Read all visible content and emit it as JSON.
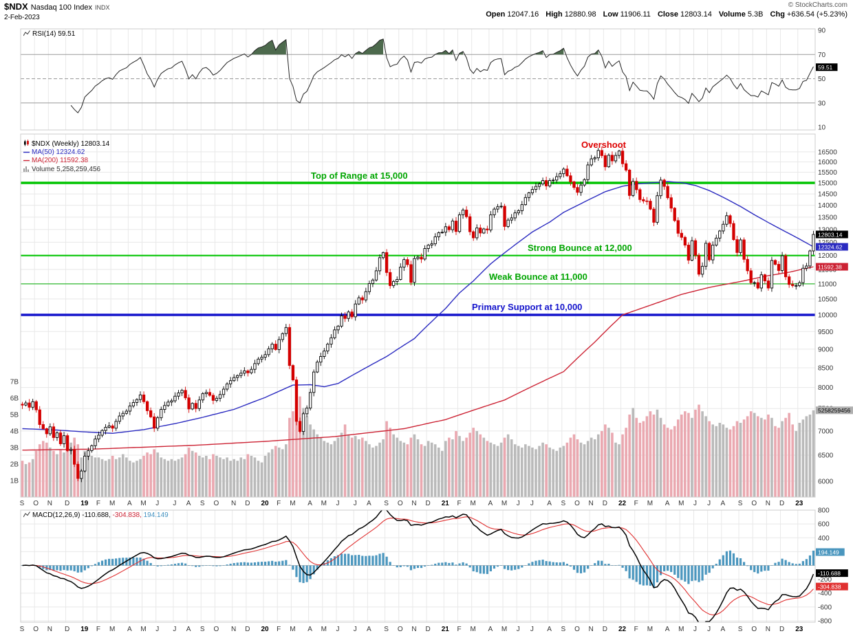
{
  "header": {
    "symbol": "$NDX",
    "name": "Nasdaq 100 Index",
    "exchange": "INDX",
    "date": "2-Feb-2023",
    "copyright": "© StockCharts.com",
    "open_l": "Open",
    "open_v": "12047.16",
    "high_l": "High",
    "high_v": "12880.98",
    "low_l": "Low",
    "low_v": "11906.11",
    "close_l": "Close",
    "close_v": "12803.14",
    "vol_l": "Volume",
    "vol_v": "5.3B",
    "chg_l": "Chg",
    "chg_v": "+636.54 (+5.23%)"
  },
  "legends": {
    "rsi": "RSI(14) 59.51",
    "main_title": "$NDX (Weekly) 12803.14",
    "ma50": "MA(50) 12324.62",
    "ma200": "MA(200) 11592.38",
    "volume": "Volume 5,258,259,456",
    "macd_label": "MACD(12,26,9)",
    "macd_value": "-110.688,",
    "macd_signal": "-304.838,",
    "macd_hist": "194.149"
  },
  "chart_data": {
    "type": "candlestick",
    "symbol": "$NDX",
    "period": "Weekly",
    "log_scale": true,
    "x_month_ticks": [
      [
        "S",
        0
      ],
      [
        "O",
        4
      ],
      [
        "N",
        8
      ],
      [
        "D",
        13
      ],
      [
        "19",
        18
      ],
      [
        "F",
        22
      ],
      [
        "M",
        26
      ],
      [
        "A",
        31
      ],
      [
        "M",
        35
      ],
      [
        "J",
        39
      ],
      [
        "J",
        44
      ],
      [
        "A",
        48
      ],
      [
        "S",
        52
      ],
      [
        "O",
        56
      ],
      [
        "N",
        61
      ],
      [
        "D",
        65
      ],
      [
        "20",
        70
      ],
      [
        "F",
        74
      ],
      [
        "M",
        78
      ],
      [
        "A",
        83
      ],
      [
        "M",
        87
      ],
      [
        "J",
        91
      ],
      [
        "J",
        96
      ],
      [
        "A",
        100
      ],
      [
        "S",
        105
      ],
      [
        "O",
        109
      ],
      [
        "N",
        113
      ],
      [
        "D",
        117
      ],
      [
        "21",
        122
      ],
      [
        "F",
        126
      ],
      [
        "M",
        130
      ],
      [
        "A",
        135
      ],
      [
        "M",
        139
      ],
      [
        "J",
        143
      ],
      [
        "J",
        147
      ],
      [
        "A",
        152
      ],
      [
        "S",
        156
      ],
      [
        "O",
        160
      ],
      [
        "N",
        164
      ],
      [
        "D",
        168
      ],
      [
        "22",
        173
      ],
      [
        "F",
        177
      ],
      [
        "M",
        181
      ],
      [
        "A",
        186
      ],
      [
        "M",
        190
      ],
      [
        "J",
        194
      ],
      [
        "J",
        198
      ],
      [
        "A",
        202
      ],
      [
        "S",
        207
      ],
      [
        "O",
        211
      ],
      [
        "N",
        215
      ],
      [
        "D",
        219
      ],
      [
        "23",
        224
      ]
    ],
    "closes": [
      7580,
      7630,
      7530,
      7660,
      7470,
      7140,
      7050,
      6940,
      7090,
      6860,
      6960,
      6730,
      6900,
      6590,
      6610,
      6320,
      6050,
      6190,
      6480,
      6590,
      6690,
      6830,
      6910,
      7010,
      7080,
      7110,
      7060,
      7210,
      7330,
      7390,
      7440,
      7560,
      7640,
      7710,
      7820,
      7660,
      7450,
      7310,
      7060,
      7290,
      7480,
      7570,
      7650,
      7680,
      7790,
      7870,
      7930,
      7750,
      7490,
      7620,
      7500,
      7700,
      7850,
      7880,
      7810,
      7690,
      7740,
      7830,
      7960,
      8090,
      8170,
      8250,
      8300,
      8360,
      8420,
      8370,
      8460,
      8610,
      8730,
      8780,
      8850,
      9010,
      9140,
      8990,
      9270,
      9440,
      9620,
      8560,
      8190,
      7210,
      6990,
      7380,
      7510,
      7880,
      8390,
      8650,
      8800,
      8950,
      9140,
      9320,
      9550,
      9660,
      9970,
      9890,
      10090,
      9940,
      10340,
      10540,
      10470,
      10740,
      11010,
      11130,
      11450,
      11920,
      12110,
      11390,
      10940,
      11080,
      11150,
      11580,
      11850,
      11670,
      11050,
      11890,
      11940,
      11870,
      12260,
      12390,
      12440,
      12710,
      12870,
      12890,
      13110,
      12990,
      13340,
      12920,
      13600,
      13800,
      13520,
      12910,
      12670,
      13060,
      12860,
      13020,
      12980,
      13600,
      13840,
      13940,
      13960,
      13120,
      13380,
      13470,
      13680,
      13770,
      14030,
      14340,
      14550,
      14700,
      14840,
      14950,
      15110,
      14860,
      15110,
      15130,
      15290,
      15430,
      15650,
      15330,
      15050,
      14790,
      14570,
      14900,
      15150,
      15850,
      16150,
      16200,
      16570,
      16310,
      15760,
      16330,
      16050,
      16320,
      16540,
      15910,
      15600,
      14430,
      15070,
      14690,
      14250,
      14190,
      14180,
      13840,
      13290,
      14420,
      15130,
      14840,
      14330,
      13880,
      13360,
      12850,
      12690,
      12390,
      11830,
      12560,
      12010,
      11330,
      11610,
      12460,
      11840,
      12390,
      12660,
      12940,
      13210,
      13560,
      13240,
      12600,
      12110,
      12590,
      11860,
      11450,
      11040,
      11040,
      10860,
      11310,
      11100,
      10860,
      11820,
      11680,
      11460,
      11990,
      11240,
      10980,
      10940,
      10940,
      11040,
      11540,
      11620,
      12170,
      12803.14
    ],
    "volume_billions": [
      2.2,
      2.0,
      2.1,
      2.3,
      2.8,
      3.2,
      3.4,
      3.3,
      3.0,
      2.8,
      2.6,
      2.9,
      2.7,
      3.1,
      3.3,
      3.6,
      3.2,
      2.4,
      2.8,
      2.6,
      2.5,
      2.4,
      2.4,
      2.3,
      2.2,
      2.3,
      2.5,
      2.3,
      2.4,
      2.6,
      2.4,
      2.2,
      2.1,
      2.2,
      2.3,
      2.5,
      2.7,
      2.6,
      2.9,
      2.7,
      2.4,
      2.3,
      2.2,
      2.3,
      2.2,
      2.3,
      2.4,
      2.6,
      3.0,
      2.8,
      2.7,
      2.5,
      2.4,
      2.5,
      2.3,
      2.6,
      2.5,
      2.4,
      2.3,
      2.4,
      2.2,
      2.3,
      2.2,
      2.4,
      2.3,
      2.6,
      2.5,
      2.4,
      2.2,
      2.1,
      2.5,
      2.7,
      2.9,
      3.1,
      3.0,
      2.9,
      3.2,
      4.8,
      5.2,
      5.8,
      6.1,
      5.4,
      4.9,
      4.4,
      4.1,
      3.8,
      3.6,
      3.4,
      3.3,
      3.2,
      3.4,
      3.6,
      3.9,
      4.4,
      3.8,
      3.6,
      3.7,
      3.5,
      3.6,
      3.4,
      3.2,
      3.0,
      3.1,
      3.3,
      3.5,
      4.6,
      4.2,
      3.8,
      3.6,
      3.4,
      3.3,
      3.2,
      3.6,
      3.8,
      3.5,
      3.2,
      3.1,
      3.4,
      3.3,
      3.2,
      3.0,
      2.8,
      3.4,
      3.6,
      3.5,
      4.0,
      3.7,
      3.4,
      3.6,
      3.9,
      4.2,
      4.0,
      3.8,
      3.6,
      3.4,
      3.3,
      3.2,
      3.1,
      3.3,
      3.6,
      3.8,
      3.5,
      3.2,
      3.1,
      3.0,
      3.2,
      3.1,
      3.0,
      2.9,
      3.1,
      3.3,
      3.2,
      3.0,
      2.9,
      2.8,
      3.0,
      3.1,
      3.3,
      3.6,
      3.8,
      3.5,
      3.3,
      3.2,
      3.4,
      3.6,
      3.5,
      3.8,
      4.0,
      4.4,
      4.2,
      3.9,
      3.3,
      3.2,
      3.8,
      4.2,
      5.0,
      5.4,
      4.8,
      4.5,
      4.6,
      4.9,
      5.2,
      5.0,
      5.3,
      4.8,
      4.4,
      4.2,
      4.1,
      4.3,
      4.7,
      5.0,
      5.2,
      5.1,
      4.8,
      5.3,
      5.6,
      5.2,
      4.9,
      4.6,
      4.4,
      4.3,
      4.5,
      4.4,
      4.2,
      4.1,
      4.3,
      4.6,
      4.5,
      4.7,
      4.9,
      5.2,
      5.1,
      4.9,
      4.8,
      4.7,
      5.0,
      4.8,
      4.3,
      4.2,
      4.6,
      4.8,
      5.1,
      4.4,
      4.0,
      4.5,
      4.7,
      4.9,
      5.0,
      5.26
    ],
    "price_axis_ticks": [
      16500,
      16000,
      15500,
      15000,
      14500,
      14000,
      13500,
      13000,
      12500,
      12000,
      11500,
      11000,
      10500,
      10000,
      9500,
      9000,
      8500,
      8000,
      7500,
      7000,
      6500,
      6000
    ],
    "volume_axis_ticks": [
      7,
      6,
      5,
      4,
      3,
      2,
      1
    ],
    "ma50_anchors": [
      [
        0,
        7050
      ],
      [
        10,
        7020
      ],
      [
        18,
        6980
      ],
      [
        26,
        6950
      ],
      [
        35,
        7030
      ],
      [
        44,
        7160
      ],
      [
        52,
        7300
      ],
      [
        61,
        7480
      ],
      [
        70,
        7760
      ],
      [
        78,
        8060
      ],
      [
        83,
        8070
      ],
      [
        87,
        8020
      ],
      [
        91,
        8100
      ],
      [
        96,
        8350
      ],
      [
        105,
        8800
      ],
      [
        113,
        9300
      ],
      [
        117,
        9700
      ],
      [
        122,
        10200
      ],
      [
        126,
        10700
      ],
      [
        130,
        11100
      ],
      [
        135,
        11700
      ],
      [
        139,
        12100
      ],
      [
        143,
        12500
      ],
      [
        147,
        12900
      ],
      [
        152,
        13300
      ],
      [
        156,
        13700
      ],
      [
        160,
        14000
      ],
      [
        164,
        14300
      ],
      [
        168,
        14600
      ],
      [
        173,
        14850
      ],
      [
        177,
        14950
      ],
      [
        181,
        15000
      ],
      [
        186,
        15060
      ],
      [
        190,
        15010
      ],
      [
        194,
        14880
      ],
      [
        198,
        14650
      ],
      [
        202,
        14350
      ],
      [
        207,
        13950
      ],
      [
        211,
        13600
      ],
      [
        215,
        13280
      ],
      [
        219,
        12980
      ],
      [
        224,
        12620
      ],
      [
        228,
        12324.62
      ]
    ],
    "ma200_anchors": [
      [
        0,
        6600
      ],
      [
        20,
        6620
      ],
      [
        50,
        6700
      ],
      [
        70,
        6780
      ],
      [
        90,
        6880
      ],
      [
        110,
        7050
      ],
      [
        122,
        7250
      ],
      [
        139,
        7700
      ],
      [
        156,
        8400
      ],
      [
        165,
        9200
      ],
      [
        173,
        10000
      ],
      [
        181,
        10300
      ],
      [
        190,
        10650
      ],
      [
        198,
        10880
      ],
      [
        207,
        11080
      ],
      [
        215,
        11280
      ],
      [
        221,
        11400
      ],
      [
        228,
        11592.38
      ]
    ],
    "hlines": [
      {
        "value": 15000,
        "label": "Top of Range at 15,000",
        "color": "#00c400",
        "width": 3.5
      },
      {
        "value": 12000,
        "label": "Strong Bounce at 12,000",
        "color": "#00c400",
        "width": 2.2
      },
      {
        "value": 11000,
        "label": "Weak Bounce at 11,000",
        "color": "#2db82d",
        "width": 1.2
      },
      {
        "value": 10000,
        "label": "Primary Support at 10,000",
        "color": "#1414cc",
        "width": 3.5
      }
    ],
    "annotations": [
      {
        "text": "Overshoot",
        "color": "#dd0000"
      }
    ],
    "last": {
      "close": "12803.14",
      "ma50": "12324.62",
      "ma200": "11592.38",
      "volume": "5258259456",
      "rsi": "59.51",
      "macd": "-110.688",
      "signal": "-304.838",
      "hist": "194.149"
    },
    "rsi": {
      "period": 14,
      "levels": [
        70,
        50,
        30
      ],
      "axis_ticks": [
        90,
        70,
        50,
        30,
        10
      ]
    },
    "macd": {
      "params": [
        12,
        26,
        9
      ],
      "axis_ticks": [
        800,
        600,
        400,
        200,
        -200,
        -400,
        -600,
        -800
      ]
    },
    "colors": {
      "up": "#000000",
      "up_fill": "#ffffff",
      "down": "#d40000",
      "ma50": "#2a2ac0",
      "ma200": "#cc2233",
      "vol_up": "#bababa",
      "vol_down": "#eaa8b0",
      "rsi_line": "#222222",
      "rsi_fill": "#4d6a4d",
      "macd_hist": "#4a96be",
      "macd_line": "#000000",
      "macd_signal": "#e03030",
      "grid": "#e8e8e8",
      "panel_border": "#cccccc"
    }
  }
}
